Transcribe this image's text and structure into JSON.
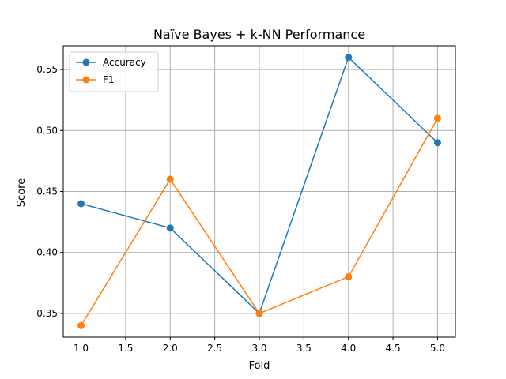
{
  "chart_data": {
    "type": "line",
    "title": "Naïve Bayes + k-NN Performance",
    "xlabel": "Fold",
    "ylabel": "Score",
    "x": [
      1,
      2,
      3,
      4,
      5
    ],
    "series": [
      {
        "name": "Accuracy",
        "values": [
          0.44,
          0.42,
          0.35,
          0.56,
          0.49
        ],
        "color": "#1f77b4"
      },
      {
        "name": "F1",
        "values": [
          0.34,
          0.46,
          0.35,
          0.38,
          0.51
        ],
        "color": "#ff7f0e"
      }
    ],
    "xlim": [
      0.8,
      5.2
    ],
    "ylim": [
      0.3305,
      0.5695
    ],
    "xticks": [
      1.0,
      1.5,
      2.0,
      2.5,
      3.0,
      3.5,
      4.0,
      4.5,
      5.0
    ],
    "xtick_labels": [
      "1.0",
      "1.5",
      "2.0",
      "2.5",
      "3.0",
      "3.5",
      "4.0",
      "4.5",
      "5.0"
    ],
    "yticks": [
      0.35,
      0.4,
      0.45,
      0.5,
      0.55
    ],
    "ytick_labels": [
      "0.35",
      "0.40",
      "0.45",
      "0.50",
      "0.55"
    ],
    "grid": true,
    "legend": "top-left",
    "marker": "circle"
  }
}
